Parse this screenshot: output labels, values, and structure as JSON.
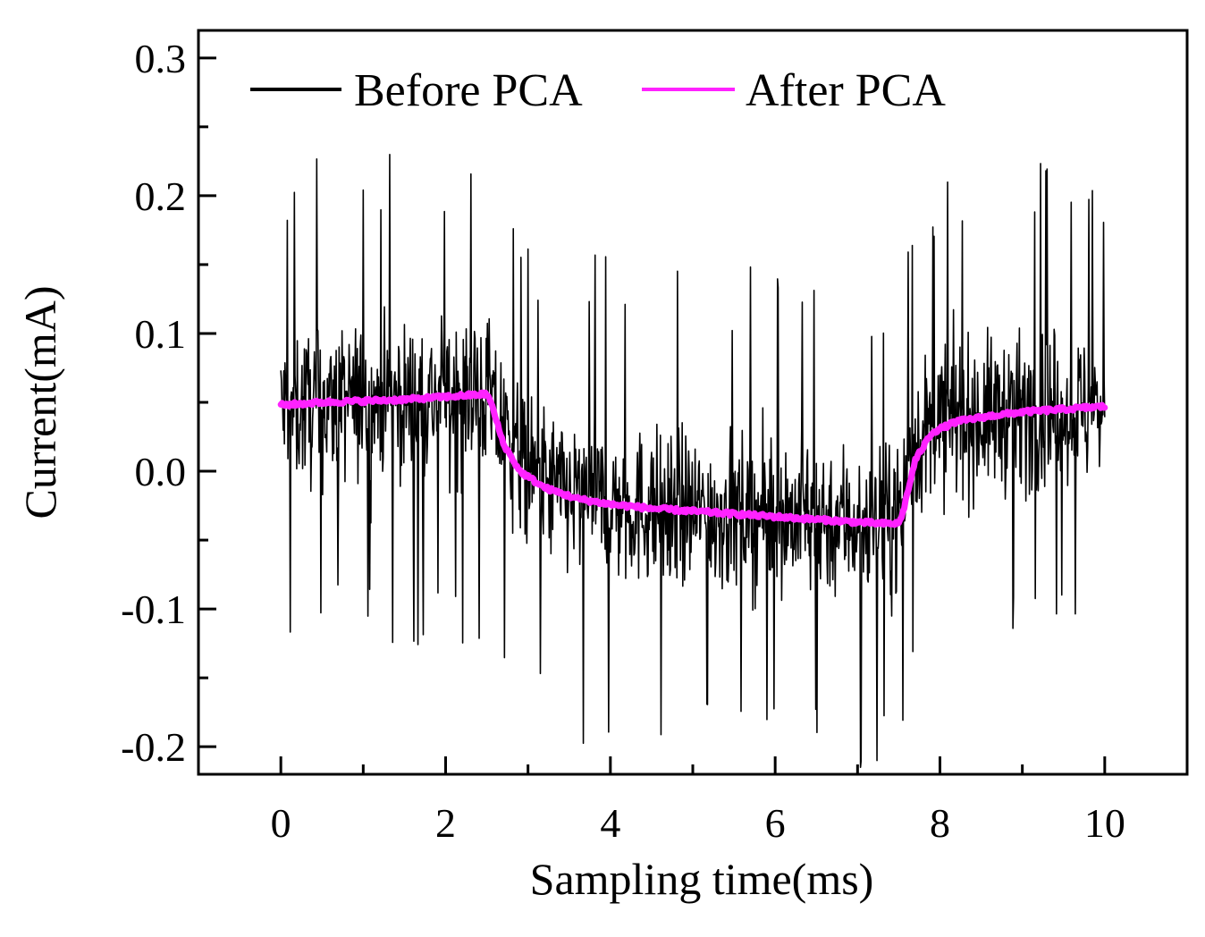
{
  "chart_data": {
    "type": "line",
    "title": "",
    "xlabel": "Sampling time(ms)",
    "ylabel": "Current(mA)",
    "xlim": [
      -1,
      11
    ],
    "ylim": [
      -0.22,
      0.32
    ],
    "xticks": [
      0,
      2,
      4,
      6,
      8,
      10
    ],
    "xtick_labels": [
      "0",
      "2",
      "4",
      "6",
      "8",
      "10"
    ],
    "xminor": [
      1,
      3,
      5,
      7,
      9
    ],
    "yticks": [
      0.3,
      0.2,
      0.1,
      0.0,
      -0.1,
      -0.2
    ],
    "ytick_labels": [
      "0.3",
      "0.2",
      "0.1",
      "0.0",
      "-0.1",
      "-0.2"
    ],
    "yminor": [
      0.25,
      0.15,
      0.05,
      -0.05,
      -0.15
    ],
    "grid": false,
    "legend_position": "top",
    "series": [
      {
        "name": "Before PCA",
        "color": "#000000",
        "x": [
          0,
          0.5,
          1,
          1.5,
          2,
          2.5,
          2.6,
          3,
          3.5,
          4,
          4.5,
          5,
          5.5,
          6,
          6.5,
          7,
          7.4,
          7.5,
          7.7,
          8,
          8.5,
          9,
          9.5,
          10
        ],
        "y": [
          0.045,
          0.048,
          0.05,
          0.052,
          0.054,
          0.056,
          0.04,
          -0.005,
          -0.018,
          -0.024,
          -0.027,
          -0.029,
          -0.031,
          -0.032,
          -0.034,
          -0.035,
          -0.036,
          -0.03,
          0.02,
          0.035,
          0.04,
          0.043,
          0.045,
          0.046
        ],
        "noise_amplitude": 0.1,
        "y_max": 0.26,
        "y_min": -0.22
      },
      {
        "name": "After PCA",
        "color": "#ff22ff",
        "x": [
          0,
          0.5,
          1,
          1.5,
          2,
          2.5,
          2.55,
          2.7,
          2.9,
          3.2,
          3.6,
          4,
          4.5,
          5,
          5.5,
          6,
          6.5,
          7,
          7.3,
          7.5,
          7.55,
          7.7,
          7.9,
          8.2,
          8.6,
          9,
          9.5,
          10
        ],
        "y": [
          0.048,
          0.05,
          0.051,
          0.052,
          0.054,
          0.056,
          0.05,
          0.02,
          0.0,
          -0.012,
          -0.02,
          -0.024,
          -0.027,
          -0.029,
          -0.031,
          -0.033,
          -0.035,
          -0.037,
          -0.038,
          -0.038,
          -0.03,
          0.008,
          0.028,
          0.036,
          0.04,
          0.043,
          0.045,
          0.047
        ]
      }
    ]
  }
}
